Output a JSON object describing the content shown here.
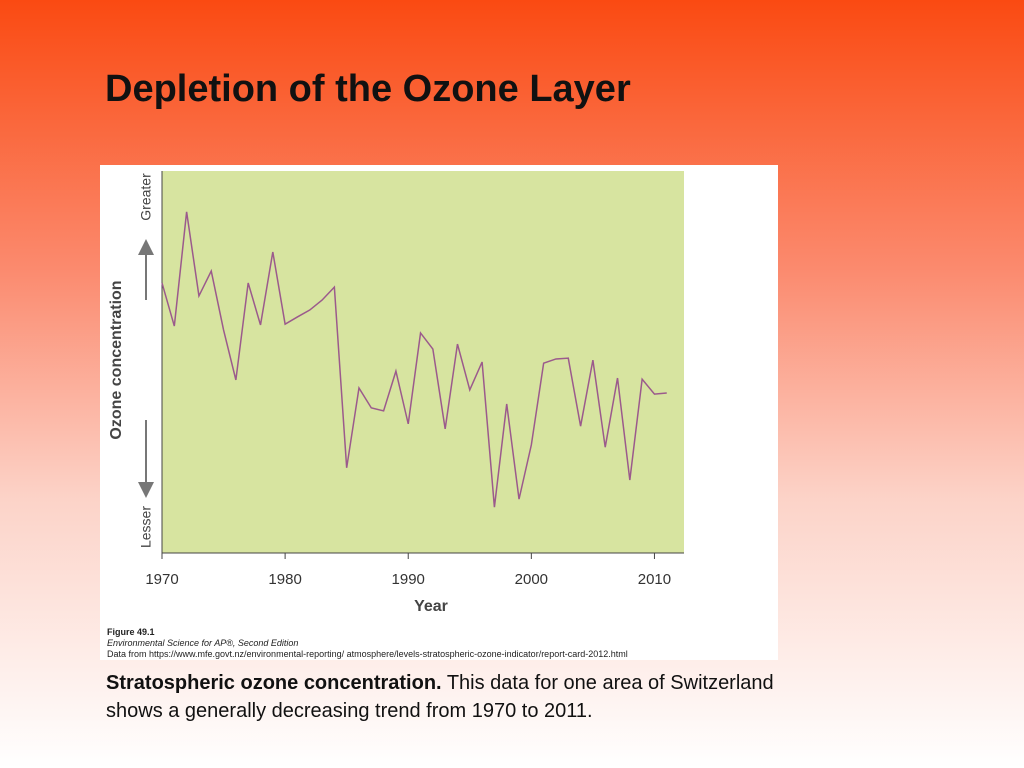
{
  "slide": {
    "title": "Depletion of the Ozone Layer",
    "caption_lead": "Stratospheric ozone concentration.",
    "caption_text": "This data for one area of Switzerland shows a generally decreasing trend from 1970 to 2011."
  },
  "figure": {
    "label": "Figure 49.1",
    "book": "Environmental Science for AP®, Second Edition",
    "source": "Data from https://www.mfe.govt.nz/environmental-reporting/ atmosphere/levels-stratospheric-ozone-indicator/report-card-2012.html"
  },
  "chart_data": {
    "type": "line",
    "x_label": "Year",
    "y_label": "Ozone concentration",
    "x": [
      1970,
      1971,
      1972,
      1973,
      1974,
      1975,
      1976,
      1977,
      1978,
      1979,
      1980,
      1981,
      1982,
      1983,
      1984,
      1985,
      1986,
      1987,
      1988,
      1989,
      1990,
      1991,
      1992,
      1993,
      1994,
      1995,
      1996,
      1997,
      1998,
      1999,
      2000,
      2001,
      2002,
      2003,
      2004,
      2005,
      2006,
      2007,
      2008,
      2009,
      2010,
      2011
    ],
    "series": [
      {
        "name": "Ozone concentration",
        "color": "#9b5a8c",
        "values": [
          70.7,
          59.4,
          89.3,
          67.3,
          73.8,
          58.4,
          45.3,
          70.7,
          59.7,
          78.8,
          59.9,
          61.8,
          63.6,
          66.2,
          69.6,
          22.3,
          43.2,
          38.0,
          37.2,
          47.6,
          33.8,
          57.6,
          53.4,
          32.5,
          54.7,
          42.7,
          50.0,
          12.0,
          39.0,
          14.1,
          28.3,
          49.7,
          50.8,
          51.0,
          33.2,
          50.5,
          27.7,
          45.8,
          19.1,
          45.5,
          41.6,
          41.9
        ]
      }
    ],
    "xlim": [
      1970,
      2012.4
    ],
    "xticks": [
      1970,
      1980,
      1990,
      2000,
      2010
    ],
    "ylim": [
      0,
      100
    ],
    "yticks": [
      {
        "value": 0,
        "label": "Lesser"
      },
      {
        "value": 100,
        "label": "Greater"
      }
    ],
    "plot_color": "#d7e4a0"
  }
}
